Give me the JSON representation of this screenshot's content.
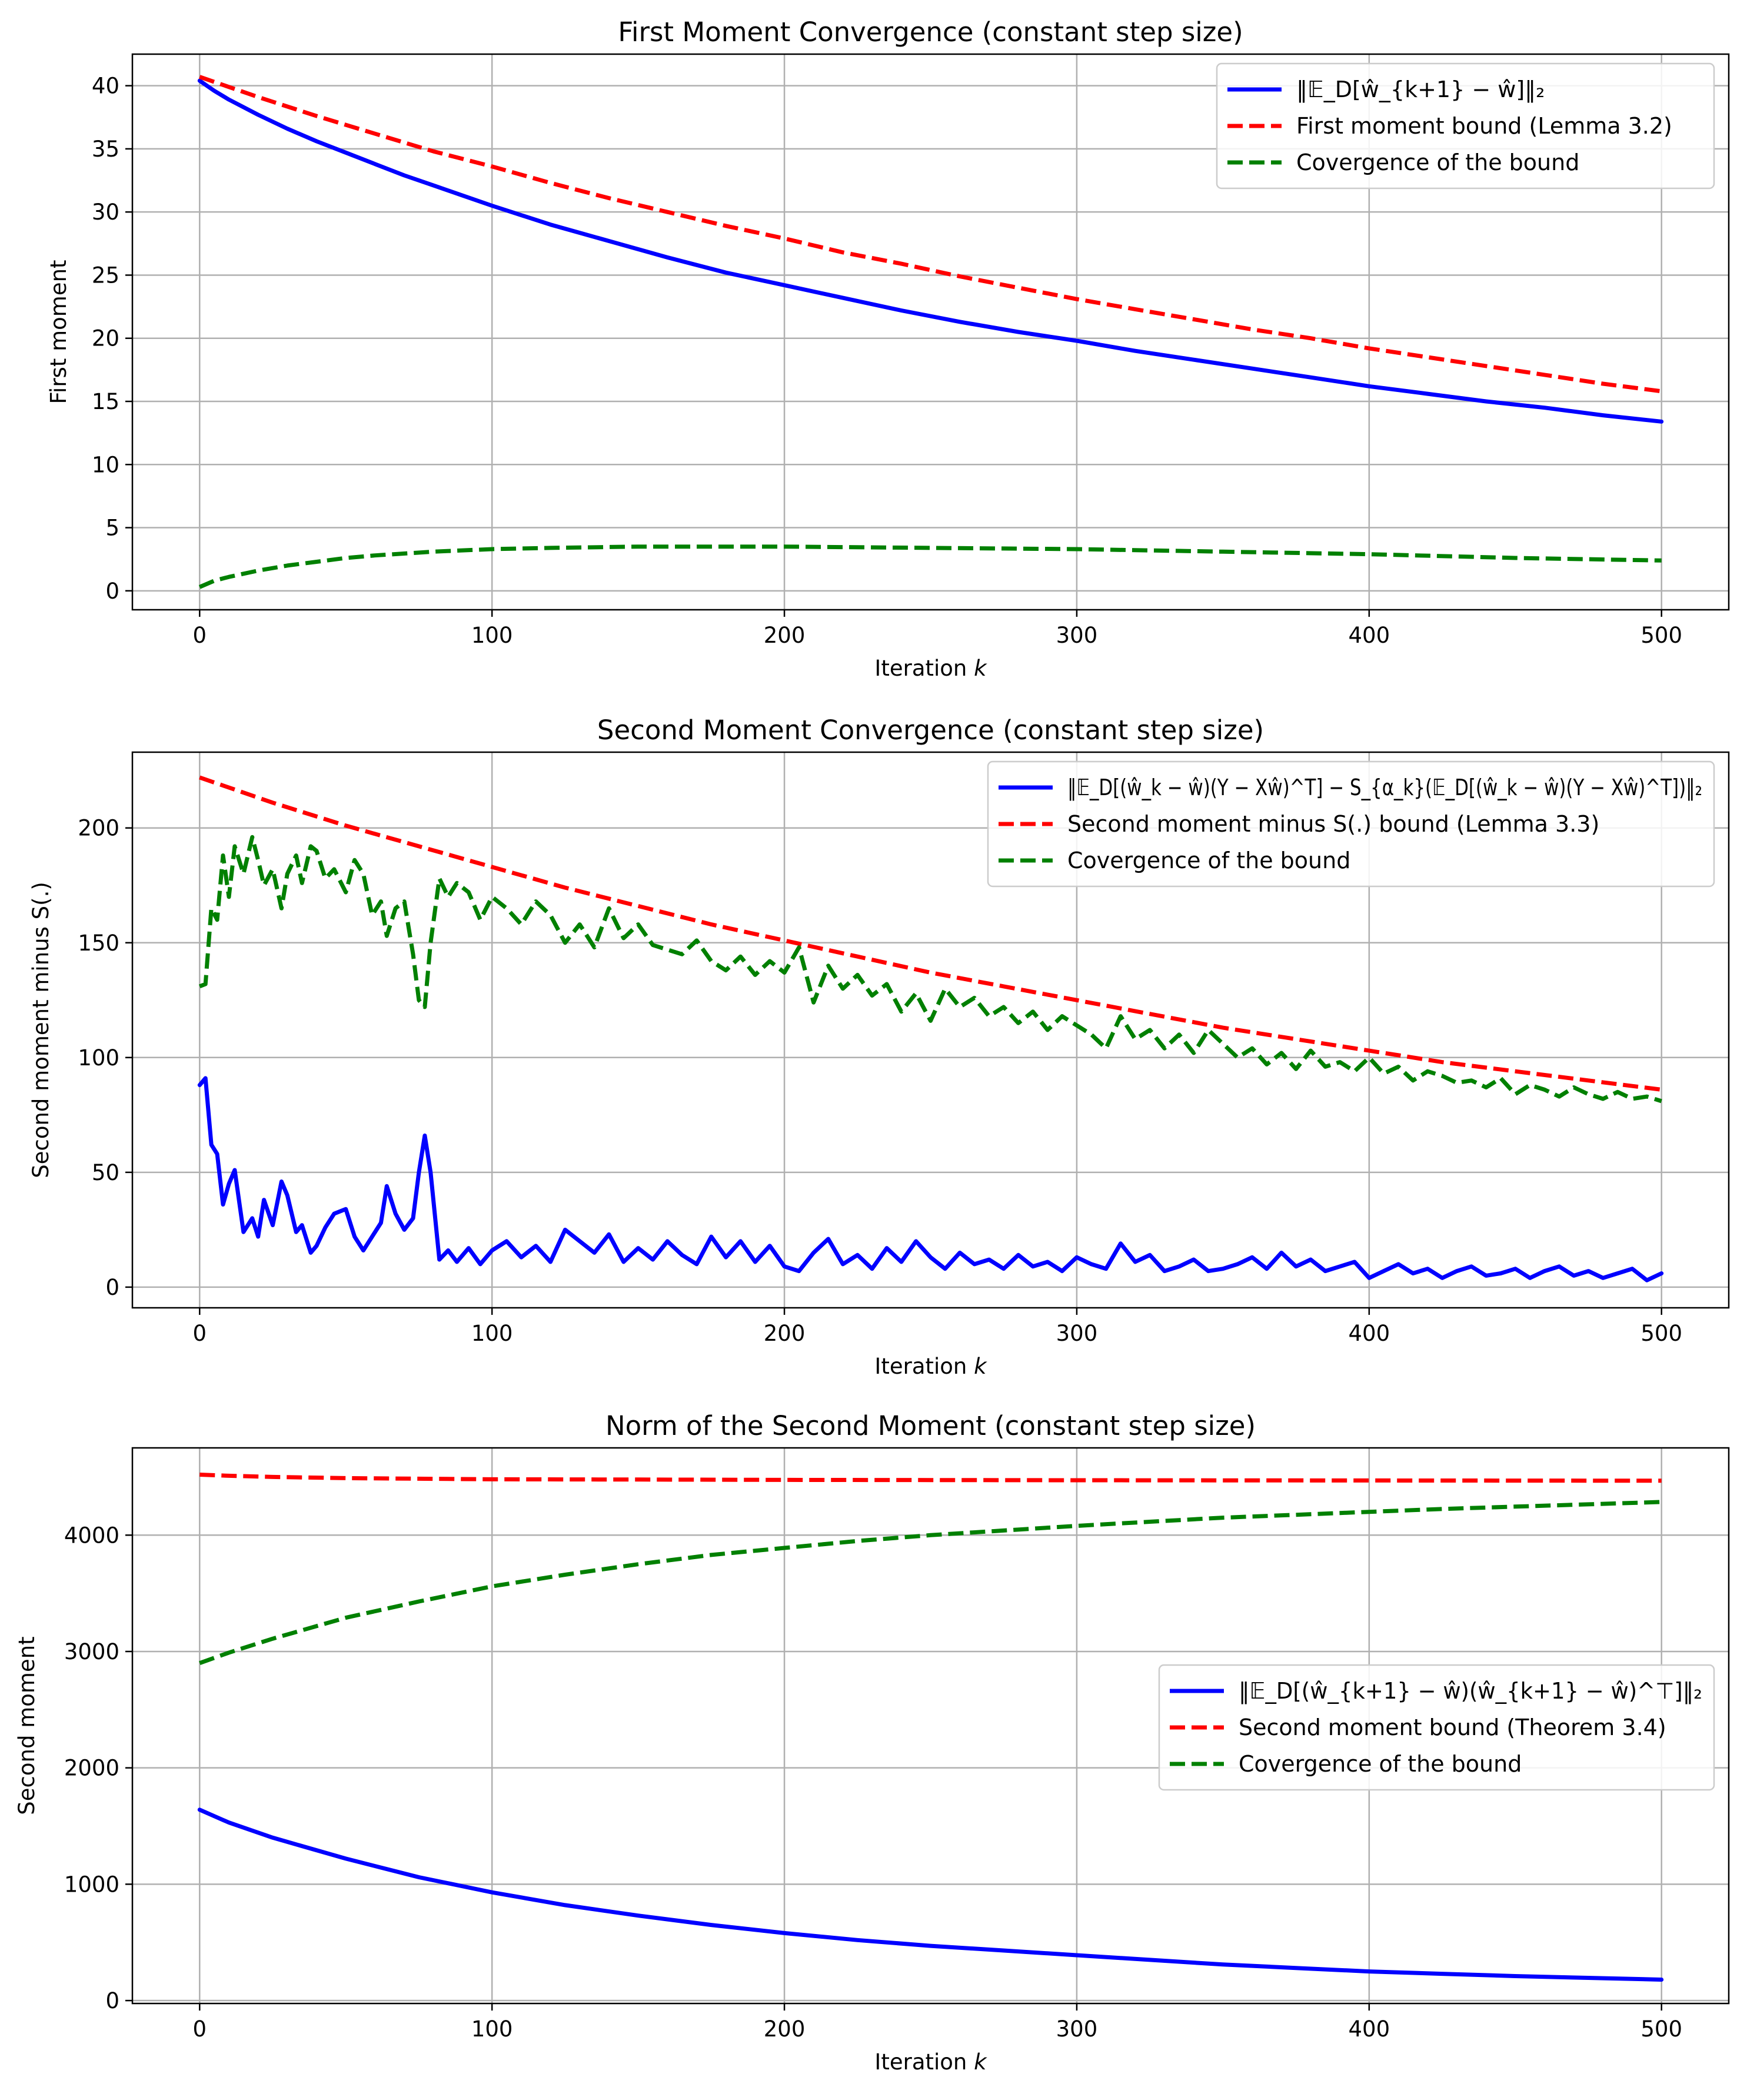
{
  "chart_data": [
    {
      "type": "line",
      "title": "First Moment Convergence (constant step size)",
      "xlabel": "Iteration k",
      "ylabel": "First moment",
      "xlim": [
        -23,
        523
      ],
      "ylim": [
        -1.5,
        42.5
      ],
      "xticks": [
        0,
        100,
        200,
        300,
        400,
        500
      ],
      "yticks": [
        0,
        5,
        10,
        15,
        20,
        25,
        30,
        35,
        40
      ],
      "grid": true,
      "legend_position": "upper right",
      "series": [
        {
          "name": "‖𝔼_D[ŵ_{k+1} − ŵ]‖₂",
          "color": "#0000ff",
          "style": "solid",
          "x": [
            0,
            5,
            10,
            20,
            30,
            40,
            50,
            60,
            70,
            80,
            90,
            100,
            120,
            140,
            160,
            180,
            200,
            220,
            240,
            260,
            280,
            300,
            320,
            340,
            360,
            380,
            400,
            420,
            440,
            460,
            480,
            500
          ],
          "y": [
            40.4,
            39.6,
            38.9,
            37.7,
            36.6,
            35.6,
            34.7,
            33.8,
            32.9,
            32.1,
            31.3,
            30.5,
            29.0,
            27.7,
            26.4,
            25.2,
            24.2,
            23.2,
            22.2,
            21.3,
            20.5,
            19.8,
            19.0,
            18.3,
            17.6,
            16.9,
            16.2,
            15.6,
            15.0,
            14.5,
            13.9,
            13.4
          ]
        },
        {
          "name": "First moment bound (Lemma 3.2)",
          "color": "#ff0000",
          "style": "dashed",
          "x": [
            0,
            20,
            40,
            60,
            80,
            100,
            120,
            140,
            160,
            180,
            200,
            220,
            240,
            260,
            280,
            300,
            320,
            340,
            360,
            380,
            400,
            420,
            440,
            460,
            480,
            500
          ],
          "y": [
            40.7,
            39.1,
            37.6,
            36.2,
            34.8,
            33.6,
            32.3,
            31.1,
            30.0,
            28.9,
            27.9,
            26.8,
            25.9,
            24.9,
            24.0,
            23.1,
            22.3,
            21.5,
            20.7,
            20.0,
            19.2,
            18.5,
            17.8,
            17.1,
            16.4,
            15.8
          ]
        },
        {
          "name": "Covergence of the bound",
          "color": "#008000",
          "style": "dashed",
          "x": [
            0,
            5,
            10,
            20,
            30,
            40,
            50,
            60,
            80,
            100,
            120,
            150,
            180,
            200,
            250,
            300,
            350,
            400,
            450,
            500
          ],
          "y": [
            0.3,
            0.8,
            1.1,
            1.6,
            2.0,
            2.3,
            2.6,
            2.8,
            3.1,
            3.3,
            3.4,
            3.5,
            3.5,
            3.5,
            3.4,
            3.3,
            3.1,
            2.9,
            2.6,
            2.4
          ]
        }
      ]
    },
    {
      "type": "line",
      "title": "Second Moment Convergence (constant step size)",
      "xlabel": "Iteration k",
      "ylabel": "Second moment minus S(.)",
      "xlim": [
        -23,
        523
      ],
      "ylim": [
        -9,
        233
      ],
      "xticks": [
        0,
        100,
        200,
        300,
        400,
        500
      ],
      "yticks": [
        0,
        50,
        100,
        150,
        200
      ],
      "grid": true,
      "legend_position": "upper right",
      "series": [
        {
          "name": "‖𝔼_D[(ŵ_k − ŵ)(Y − Xŵ)^T] − S_{α_k}(𝔼_D[(ŵ_k − ŵ)(Y − Xŵ)^T])‖₂",
          "color": "#0000ff",
          "style": "solid",
          "x": [
            0,
            2,
            4,
            6,
            8,
            10,
            12,
            15,
            18,
            20,
            22,
            25,
            28,
            30,
            33,
            35,
            38,
            40,
            43,
            46,
            50,
            53,
            56,
            59,
            62,
            64,
            67,
            70,
            73,
            75,
            77,
            79,
            82,
            85,
            88,
            92,
            96,
            100,
            105,
            110,
            115,
            120,
            125,
            130,
            135,
            140,
            145,
            150,
            155,
            160,
            165,
            170,
            175,
            180,
            185,
            190,
            195,
            200,
            205,
            210,
            215,
            220,
            225,
            230,
            235,
            240,
            245,
            250,
            255,
            260,
            265,
            270,
            275,
            280,
            285,
            290,
            295,
            300,
            305,
            310,
            315,
            320,
            325,
            330,
            335,
            340,
            345,
            350,
            355,
            360,
            365,
            370,
            375,
            380,
            385,
            390,
            395,
            400,
            405,
            410,
            415,
            420,
            425,
            430,
            435,
            440,
            445,
            450,
            455,
            460,
            465,
            470,
            475,
            480,
            485,
            490,
            495,
            500
          ],
          "y": [
            88,
            91,
            62,
            58,
            36,
            45,
            51,
            24,
            30,
            22,
            38,
            27,
            46,
            40,
            24,
            27,
            15,
            18,
            26,
            32,
            34,
            22,
            16,
            22,
            28,
            44,
            32,
            25,
            30,
            50,
            66,
            50,
            12,
            16,
            11,
            17,
            10,
            16,
            20,
            13,
            18,
            11,
            25,
            20,
            15,
            23,
            11,
            17,
            12,
            20,
            14,
            10,
            22,
            13,
            20,
            11,
            18,
            9,
            7,
            15,
            21,
            10,
            14,
            8,
            17,
            11,
            20,
            13,
            8,
            15,
            10,
            12,
            8,
            14,
            9,
            11,
            7,
            13,
            10,
            8,
            19,
            11,
            14,
            7,
            9,
            12,
            7,
            8,
            10,
            13,
            8,
            15,
            9,
            12,
            7,
            9,
            11,
            4,
            7,
            10,
            6,
            8,
            4,
            7,
            9,
            5,
            6,
            8,
            4,
            7,
            9,
            5,
            7,
            4,
            6,
            8,
            3,
            6
          ]
        },
        {
          "name": "Second moment minus S(.) bound (Lemma 3.3)",
          "color": "#ff0000",
          "style": "dashed",
          "x": [
            0,
            25,
            50,
            75,
            100,
            125,
            150,
            175,
            200,
            225,
            250,
            275,
            300,
            325,
            350,
            375,
            400,
            425,
            450,
            475,
            500
          ],
          "y": [
            222,
            211,
            201,
            192,
            183,
            174,
            166,
            158,
            151,
            144,
            137,
            131,
            125,
            119,
            113,
            108,
            103,
            98,
            94,
            90,
            86
          ]
        },
        {
          "name": "Covergence of the bound",
          "color": "#008000",
          "style": "dashed",
          "x": [
            0,
            2,
            4,
            6,
            8,
            10,
            12,
            15,
            18,
            20,
            22,
            25,
            28,
            30,
            33,
            35,
            38,
            40,
            43,
            46,
            50,
            53,
            56,
            59,
            62,
            64,
            67,
            70,
            73,
            75,
            77,
            79,
            82,
            85,
            88,
            92,
            96,
            100,
            105,
            110,
            115,
            120,
            125,
            130,
            135,
            140,
            145,
            150,
            155,
            160,
            165,
            170,
            175,
            180,
            185,
            190,
            195,
            200,
            205,
            210,
            215,
            220,
            225,
            230,
            235,
            240,
            245,
            250,
            255,
            260,
            265,
            270,
            275,
            280,
            285,
            290,
            295,
            300,
            305,
            310,
            315,
            320,
            325,
            330,
            335,
            340,
            345,
            350,
            355,
            360,
            365,
            370,
            375,
            380,
            385,
            390,
            395,
            400,
            405,
            410,
            415,
            420,
            425,
            430,
            435,
            440,
            445,
            450,
            455,
            460,
            465,
            470,
            475,
            480,
            485,
            490,
            495,
            500
          ],
          "y": [
            131,
            132,
            165,
            160,
            188,
            170,
            192,
            180,
            196,
            186,
            175,
            182,
            165,
            180,
            188,
            176,
            192,
            190,
            178,
            182,
            172,
            186,
            180,
            162,
            168,
            153,
            165,
            168,
            145,
            125,
            122,
            150,
            178,
            170,
            176,
            172,
            160,
            170,
            165,
            158,
            168,
            162,
            150,
            158,
            148,
            165,
            152,
            158,
            149,
            147,
            145,
            151,
            142,
            138,
            144,
            136,
            142,
            137,
            148,
            124,
            140,
            130,
            136,
            127,
            132,
            120,
            128,
            116,
            130,
            122,
            126,
            118,
            122,
            115,
            120,
            112,
            118,
            114,
            110,
            104,
            118,
            108,
            112,
            104,
            110,
            102,
            112,
            106,
            100,
            104,
            97,
            102,
            95,
            103,
            96,
            98,
            94,
            100,
            93,
            96,
            90,
            94,
            92,
            89,
            90,
            87,
            91,
            84,
            88,
            86,
            83,
            87,
            84,
            82,
            85,
            82,
            83,
            81
          ]
        }
      ]
    },
    {
      "type": "line",
      "title": "Norm of the Second Moment (constant step size)",
      "xlabel": "Iteration k",
      "ylabel": "Second moment",
      "xlim": [
        -23,
        523
      ],
      "ylim": [
        -25,
        4750
      ],
      "xticks": [
        0,
        100,
        200,
        300,
        400,
        500
      ],
      "yticks": [
        0,
        1000,
        2000,
        3000,
        4000
      ],
      "grid": true,
      "legend_position": "center right",
      "series": [
        {
          "name": "‖𝔼_D[(ŵ_{k+1} − ŵ)(ŵ_{k+1} − ŵ)^⊤]‖₂",
          "color": "#0000ff",
          "style": "solid",
          "x": [
            0,
            10,
            25,
            50,
            75,
            100,
            125,
            150,
            175,
            200,
            225,
            250,
            275,
            300,
            325,
            350,
            375,
            400,
            425,
            450,
            475,
            500
          ],
          "y": [
            1640,
            1530,
            1400,
            1220,
            1060,
            930,
            820,
            730,
            650,
            580,
            520,
            470,
            430,
            390,
            350,
            310,
            280,
            250,
            230,
            210,
            195,
            180
          ]
        },
        {
          "name": "Second moment bound (Theorem 3.4)",
          "color": "#ff0000",
          "style": "dashed",
          "x": [
            0,
            10,
            25,
            50,
            100,
            150,
            200,
            300,
            400,
            500
          ],
          "y": [
            4520,
            4510,
            4500,
            4490,
            4480,
            4478,
            4475,
            4472,
            4470,
            4468
          ]
        },
        {
          "name": "Covergence of the bound",
          "color": "#008000",
          "style": "dashed",
          "x": [
            0,
            10,
            25,
            50,
            75,
            100,
            125,
            150,
            175,
            200,
            225,
            250,
            275,
            300,
            325,
            350,
            375,
            400,
            425,
            450,
            475,
            500
          ],
          "y": [
            2900,
            2990,
            3110,
            3290,
            3430,
            3560,
            3660,
            3750,
            3830,
            3890,
            3950,
            4000,
            4040,
            4080,
            4115,
            4150,
            4175,
            4200,
            4225,
            4245,
            4265,
            4285
          ]
        }
      ]
    }
  ]
}
